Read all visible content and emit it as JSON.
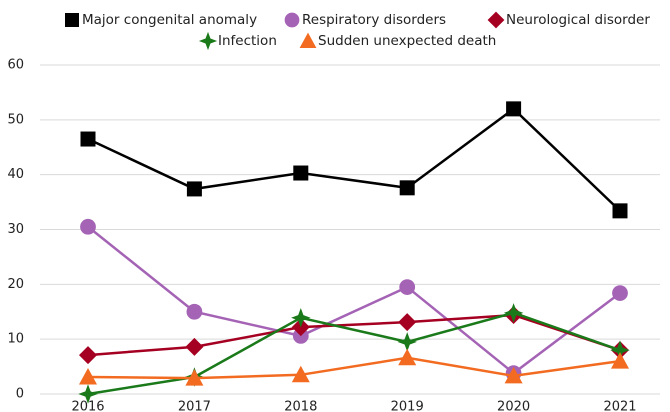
{
  "chart_data": {
    "type": "line",
    "categories": [
      "2016",
      "2017",
      "2018",
      "2019",
      "2020",
      "2021"
    ],
    "series": [
      {
        "name": "Major congenital anomaly",
        "color": "#000000",
        "marker": "square",
        "values": [
          46.5,
          37.4,
          40.3,
          37.6,
          52,
          33.4
        ]
      },
      {
        "name": "Respiratory disorders",
        "color": "#a463b5",
        "marker": "circle",
        "values": [
          30.5,
          15,
          10.6,
          19.5,
          3.8,
          18.4
        ]
      },
      {
        "name": "Neurological disorder",
        "color": "#a50021",
        "marker": "diamond",
        "values": [
          7.1,
          8.6,
          12.2,
          13.1,
          14.4,
          8
        ]
      },
      {
        "name": "Infection",
        "color": "#1a7a1a",
        "marker": "star",
        "values": [
          0,
          3.1,
          13.9,
          9.5,
          14.8,
          8
        ]
      },
      {
        "name": "Sudden unexpected death",
        "color": "#f26b21",
        "marker": "triangle",
        "values": [
          3.1,
          2.9,
          3.5,
          6.6,
          3.3,
          6
        ]
      }
    ],
    "ylim": [
      0,
      60
    ],
    "yticks": [
      0,
      10,
      20,
      30,
      40,
      50,
      60
    ],
    "grid": true
  }
}
